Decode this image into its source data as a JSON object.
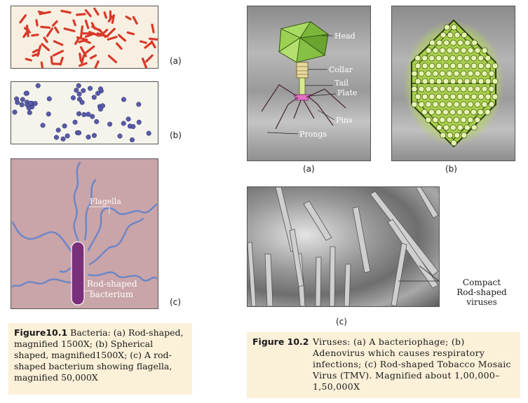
{
  "figure_10_1": {
    "panel_labels": [
      "(a)",
      "(b)",
      "(c)"
    ],
    "flagella_label": "Flagella",
    "bacterium_label_line1": "Rod-shaped",
    "bacterium_label_line2": "bacterium",
    "caption_title": "Figure10.1",
    "caption_text": "Bacteria: (a) Rod-shaped, magnified 1500X; (b) Spherical shaped, magnified1500X; (c) A rod-shaped bacterium showing flagella, magnified 50,000X"
  },
  "figure_10_2": {
    "panel_labels": [
      "(a)",
      "(b)",
      "(c)"
    ],
    "phage_labels": [
      "Head",
      "Collar",
      "Tail",
      "Plate",
      "Pins",
      "Prongs"
    ],
    "tmv_label_lines": [
      "Compact",
      "Rod-shaped",
      "viruses"
    ],
    "caption_title": "Figure 10.2",
    "caption_text": "Viruses: (a) A bacteriophage; (b) Adenovirus which causes respiratory infections; (c) Rod-shaped Tobacco Mosaic Virus (TMV). Magnified about 1,00,000–1,50,000X"
  },
  "colors": {
    "caption_bg": "#fbf0d8",
    "rod_bacteria": "#d83a2a",
    "cocci": "#5a5aa8",
    "panel_c_bg": "#c9a4a8",
    "flagella": "#6a86c8",
    "bacterium_body": "#7a2f7a",
    "phage_head": "#8cc84a"
  }
}
